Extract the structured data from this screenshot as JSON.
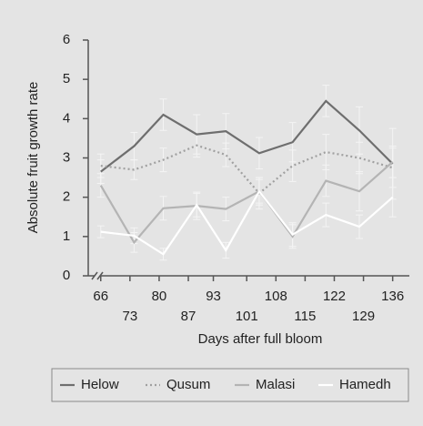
{
  "chart_data": {
    "type": "line",
    "x_label": "Days after full bloom",
    "y_label": "Absolute fruit growth rate",
    "x": [
      66,
      74,
      81,
      89,
      96,
      104,
      112,
      120,
      128,
      136
    ],
    "xlim": [
      63,
      140
    ],
    "xticks": [
      66,
      73,
      80,
      87,
      93,
      101,
      108,
      115,
      122,
      129,
      136
    ],
    "ylim": [
      0,
      6
    ],
    "yticks": [
      0,
      1,
      2,
      3,
      4,
      5,
      6
    ],
    "grid": false,
    "legend": "bottom",
    "error_color": "#f4f4f4",
    "series": [
      {
        "name": "Helow",
        "color": "#6e6e6e",
        "style": "solid",
        "values": [
          2.65,
          3.3,
          4.1,
          3.6,
          3.68,
          3.12,
          3.4,
          4.45,
          3.7,
          2.85
        ],
        "errors": [
          0.3,
          0.35,
          0.4,
          0.5,
          0.45,
          0.4,
          0.5,
          0.4,
          0.6,
          0.9
        ]
      },
      {
        "name": "Qusum",
        "color": "#a0a0a0",
        "style": "dotted",
        "values": [
          2.8,
          2.7,
          2.95,
          3.32,
          3.08,
          2.1,
          2.8,
          3.15,
          3.0,
          2.75
        ],
        "errors": [
          0.3,
          0.25,
          0.3,
          0.3,
          0.3,
          0.4,
          0.4,
          0.45,
          0.4,
          0.5
        ]
      },
      {
        "name": "Malasi",
        "color": "#b4b4b4",
        "style": "solid",
        "values": [
          2.3,
          0.85,
          1.72,
          1.78,
          1.7,
          2.15,
          1.0,
          2.42,
          2.15,
          2.9
        ],
        "errors": [
          0.3,
          0.25,
          0.3,
          0.35,
          0.3,
          0.35,
          0.3,
          0.4,
          0.5,
          0.4
        ]
      },
      {
        "name": "Hamedh",
        "color": "#ffffff",
        "style": "solid",
        "values": [
          1.12,
          1.02,
          0.55,
          1.8,
          0.65,
          2.15,
          1.05,
          1.55,
          1.25,
          2.0
        ],
        "errors": [
          0.15,
          0.2,
          0.15,
          0.3,
          0.2,
          0.3,
          0.3,
          0.3,
          0.3,
          0.5
        ]
      }
    ]
  }
}
